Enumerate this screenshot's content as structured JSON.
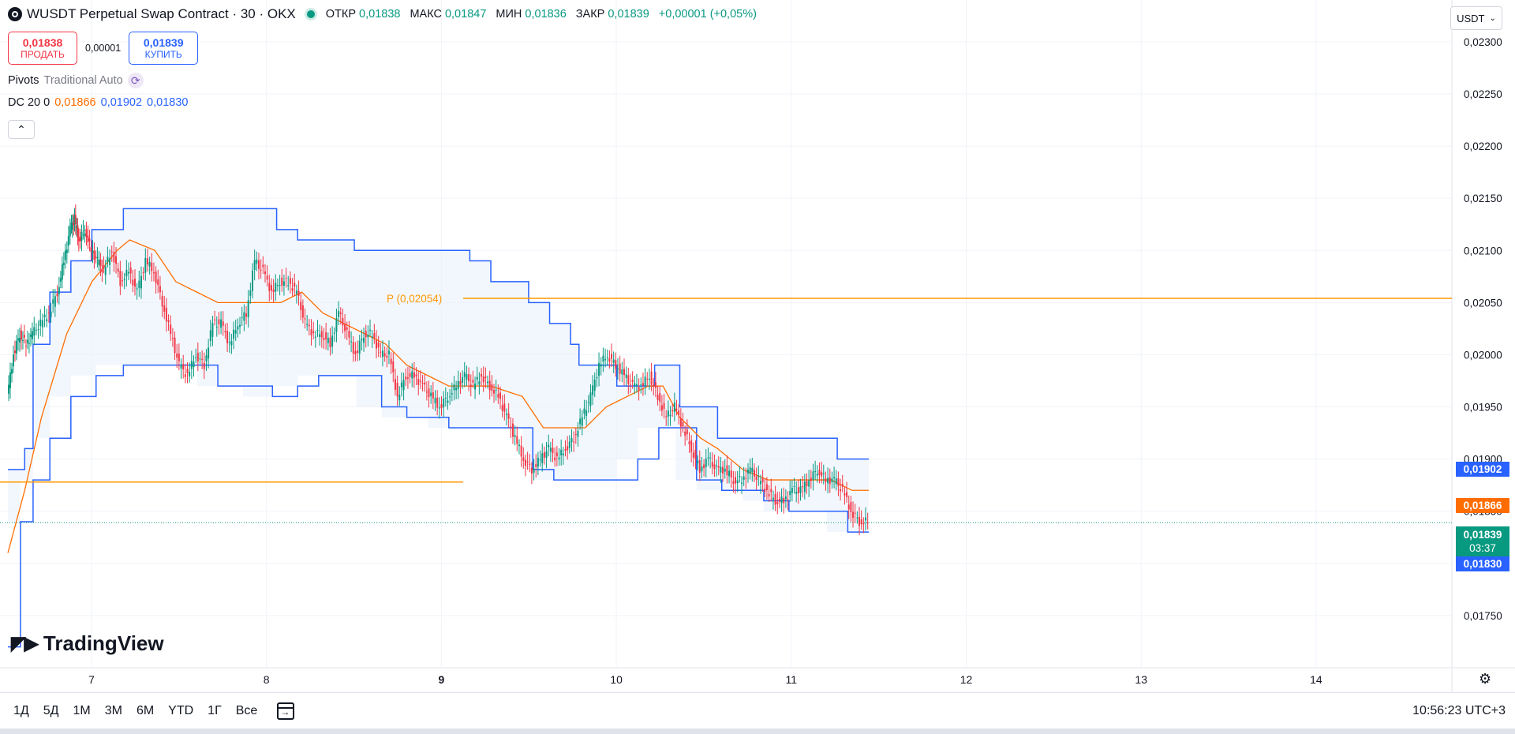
{
  "header": {
    "symbol_title": "WUSDT Perpetual Swap Contract · 30 · OKX",
    "ohlc": [
      {
        "label": "ОТКР",
        "value": "0,01838"
      },
      {
        "label": "МАКС",
        "value": "0,01847"
      },
      {
        "label": "МИН",
        "value": "0,01836"
      },
      {
        "label": "ЗАКР",
        "value": "0,01839"
      }
    ],
    "change": "+0,00001 (+0,05%)"
  },
  "trade": {
    "sell_price": "0,01838",
    "sell_label": "ПРОДАТЬ",
    "spread": "0,00001",
    "buy_price": "0,01839",
    "buy_label": "КУПИТЬ"
  },
  "indicators": {
    "pivots_name": "Pivots",
    "pivots_params": "Traditional Auto",
    "dc_name": "DC 20 0",
    "dc_basis": "0,01866",
    "dc_upper": "0,01902",
    "dc_lower": "0,01830"
  },
  "currency_select": "USDT",
  "price_tags": {
    "upper": "0,01902",
    "basis": "0,01866",
    "last": "0,01839",
    "countdown": "03:37",
    "lower": "0,01830"
  },
  "watermark": "TradingView",
  "timeframes": [
    "1Д",
    "5Д",
    "1М",
    "3М",
    "6М",
    "YTD",
    "1Г",
    "Все"
  ],
  "clock": "10:56:23 UTC+3",
  "colors": {
    "up": "#089981",
    "down": "#f23645",
    "dc_band": "#2962ff",
    "dc_basis": "#ff6d00",
    "pivot": "#ff9800",
    "fill": "#eaf2fb"
  },
  "chart_data": {
    "type": "candlestick",
    "yaxis": {
      "min": 0.017,
      "max": 0.0234,
      "ticks": [
        "0,01750",
        "0,01800",
        "0,01850",
        "0,01900",
        "0,01950",
        "0,02000",
        "0,02050",
        "0,02100",
        "0,02150",
        "0,02200",
        "0,02250",
        "0,02300"
      ]
    },
    "xaxis": {
      "labels": [
        "7",
        "8",
        "9",
        "10",
        "11",
        "12",
        "13",
        "14"
      ],
      "bold": [
        "9"
      ]
    },
    "pivot": {
      "label": "P (0,02054)",
      "value": 0.02054
    },
    "pivot_prev": {
      "value": 0.01878
    },
    "last_price": 0.01839,
    "donchian_upper": [
      [
        0,
        0.0189
      ],
      [
        8,
        0.0191
      ],
      [
        12,
        0.0201
      ],
      [
        20,
        0.0206
      ],
      [
        30,
        0.0209
      ],
      [
        40,
        0.0212
      ],
      [
        55,
        0.0214
      ],
      [
        65,
        0.0214
      ],
      [
        80,
        0.0214
      ],
      [
        90,
        0.0214
      ],
      [
        100,
        0.0214
      ],
      [
        110,
        0.0214
      ],
      [
        118,
        0.0214
      ],
      [
        128,
        0.0212
      ],
      [
        138,
        0.0211
      ],
      [
        150,
        0.0211
      ],
      [
        165,
        0.021
      ],
      [
        175,
        0.021
      ],
      [
        190,
        0.021
      ],
      [
        200,
        0.021
      ],
      [
        210,
        0.021
      ],
      [
        220,
        0.0209
      ],
      [
        230,
        0.0207
      ],
      [
        240,
        0.0207
      ],
      [
        248,
        0.0205
      ],
      [
        258,
        0.0203
      ],
      [
        268,
        0.0201
      ],
      [
        272,
        0.0199
      ],
      [
        280,
        0.0199
      ],
      [
        290,
        0.0197
      ],
      [
        300,
        0.0197
      ],
      [
        308,
        0.0199
      ],
      [
        312,
        0.0199
      ],
      [
        320,
        0.0195
      ],
      [
        330,
        0.0195
      ],
      [
        338,
        0.0192
      ],
      [
        348,
        0.0192
      ],
      [
        352,
        0.0192
      ],
      [
        356,
        0.0192
      ],
      [
        368,
        0.0192
      ],
      [
        378,
        0.0192
      ],
      [
        385,
        0.0192
      ],
      [
        395,
        0.019
      ],
      [
        402,
        0.019
      ],
      [
        410,
        0.019
      ]
    ],
    "donchian_lower": [
      [
        0,
        0.0172
      ],
      [
        6,
        0.0184
      ],
      [
        12,
        0.0188
      ],
      [
        20,
        0.0192
      ],
      [
        30,
        0.0196
      ],
      [
        42,
        0.0198
      ],
      [
        55,
        0.0199
      ],
      [
        65,
        0.0199
      ],
      [
        80,
        0.0199
      ],
      [
        90,
        0.0199
      ],
      [
        100,
        0.0197
      ],
      [
        112,
        0.0197
      ],
      [
        126,
        0.0196
      ],
      [
        138,
        0.0197
      ],
      [
        148,
        0.0198
      ],
      [
        158,
        0.0198
      ],
      [
        166,
        0.0198
      ],
      [
        178,
        0.0195
      ],
      [
        190,
        0.0194
      ],
      [
        200,
        0.0194
      ],
      [
        210,
        0.0193
      ],
      [
        222,
        0.0193
      ],
      [
        234,
        0.0193
      ],
      [
        245,
        0.0193
      ],
      [
        250,
        0.0189
      ],
      [
        260,
        0.0188
      ],
      [
        270,
        0.0188
      ],
      [
        278,
        0.0188
      ],
      [
        290,
        0.0188
      ],
      [
        300,
        0.019
      ],
      [
        310,
        0.0193
      ],
      [
        318,
        0.0193
      ],
      [
        328,
        0.0188
      ],
      [
        340,
        0.0187
      ],
      [
        350,
        0.0187
      ],
      [
        360,
        0.0186
      ],
      [
        372,
        0.0185
      ],
      [
        380,
        0.0185
      ],
      [
        390,
        0.0185
      ],
      [
        400,
        0.0183
      ],
      [
        410,
        0.0183
      ]
    ],
    "donchian_basis": [
      [
        0,
        0.0181
      ],
      [
        8,
        0.0187
      ],
      [
        16,
        0.0194
      ],
      [
        28,
        0.0202
      ],
      [
        40,
        0.0207
      ],
      [
        52,
        0.021
      ],
      [
        58,
        0.0211
      ],
      [
        70,
        0.021
      ],
      [
        80,
        0.0207
      ],
      [
        90,
        0.0206
      ],
      [
        100,
        0.0205
      ],
      [
        110,
        0.0205
      ],
      [
        120,
        0.0205
      ],
      [
        130,
        0.0205
      ],
      [
        140,
        0.0206
      ],
      [
        150,
        0.0204
      ],
      [
        160,
        0.0203
      ],
      [
        170,
        0.0202
      ],
      [
        180,
        0.0201
      ],
      [
        190,
        0.0199
      ],
      [
        200,
        0.0198
      ],
      [
        210,
        0.0197
      ],
      [
        220,
        0.0197
      ],
      [
        230,
        0.0197
      ],
      [
        245,
        0.0196
      ],
      [
        255,
        0.0193
      ],
      [
        265,
        0.0193
      ],
      [
        275,
        0.0193
      ],
      [
        285,
        0.0195
      ],
      [
        295,
        0.0196
      ],
      [
        305,
        0.0197
      ],
      [
        312,
        0.0197
      ],
      [
        320,
        0.0194
      ],
      [
        330,
        0.0192
      ],
      [
        338,
        0.0191
      ],
      [
        350,
        0.0189
      ],
      [
        362,
        0.0188
      ],
      [
        372,
        0.0188
      ],
      [
        382,
        0.0188
      ],
      [
        392,
        0.0188
      ],
      [
        402,
        0.0187
      ],
      [
        410,
        0.0187
      ]
    ],
    "close": [
      [
        0,
        0.0196
      ],
      [
        3,
        0.02
      ],
      [
        6,
        0.0202
      ],
      [
        9,
        0.0201
      ],
      [
        12,
        0.0202
      ],
      [
        16,
        0.0203
      ],
      [
        20,
        0.0204
      ],
      [
        24,
        0.0206
      ],
      [
        27,
        0.0209
      ],
      [
        30,
        0.0212
      ],
      [
        32,
        0.0213
      ],
      [
        34,
        0.0211
      ],
      [
        37,
        0.0212
      ],
      [
        40,
        0.021
      ],
      [
        43,
        0.0209
      ],
      [
        46,
        0.0208
      ],
      [
        50,
        0.021
      ],
      [
        54,
        0.0207
      ],
      [
        58,
        0.0208
      ],
      [
        62,
        0.0206
      ],
      [
        66,
        0.0209
      ],
      [
        70,
        0.0208
      ],
      [
        74,
        0.0205
      ],
      [
        78,
        0.0202
      ],
      [
        82,
        0.0199
      ],
      [
        86,
        0.0198
      ],
      [
        90,
        0.02
      ],
      [
        94,
        0.0199
      ],
      [
        98,
        0.0203
      ],
      [
        102,
        0.0203
      ],
      [
        106,
        0.0201
      ],
      [
        110,
        0.0203
      ],
      [
        114,
        0.0204
      ],
      [
        118,
        0.0209
      ],
      [
        122,
        0.0208
      ],
      [
        126,
        0.0206
      ],
      [
        130,
        0.0207
      ],
      [
        134,
        0.0207
      ],
      [
        138,
        0.0206
      ],
      [
        142,
        0.0203
      ],
      [
        146,
        0.0202
      ],
      [
        150,
        0.0202
      ],
      [
        154,
        0.0201
      ],
      [
        158,
        0.0204
      ],
      [
        162,
        0.0202
      ],
      [
        166,
        0.02
      ],
      [
        170,
        0.0202
      ],
      [
        174,
        0.0202
      ],
      [
        178,
        0.02
      ],
      [
        182,
        0.02
      ],
      [
        186,
        0.0196
      ],
      [
        190,
        0.0198
      ],
      [
        194,
        0.0198
      ],
      [
        198,
        0.0197
      ],
      [
        202,
        0.0196
      ],
      [
        206,
        0.0195
      ],
      [
        210,
        0.0196
      ],
      [
        214,
        0.0197
      ],
      [
        218,
        0.0198
      ],
      [
        222,
        0.0197
      ],
      [
        226,
        0.0198
      ],
      [
        230,
        0.0197
      ],
      [
        234,
        0.0196
      ],
      [
        238,
        0.0194
      ],
      [
        242,
        0.0192
      ],
      [
        246,
        0.019
      ],
      [
        250,
        0.0189
      ],
      [
        254,
        0.019
      ],
      [
        258,
        0.0191
      ],
      [
        262,
        0.019
      ],
      [
        266,
        0.0191
      ],
      [
        270,
        0.0192
      ],
      [
        274,
        0.0194
      ],
      [
        278,
        0.0196
      ],
      [
        282,
        0.0199
      ],
      [
        286,
        0.02
      ],
      [
        290,
        0.0199
      ],
      [
        294,
        0.0198
      ],
      [
        298,
        0.0197
      ],
      [
        302,
        0.0197
      ],
      [
        306,
        0.0198
      ],
      [
        310,
        0.0196
      ],
      [
        314,
        0.0194
      ],
      [
        318,
        0.0195
      ],
      [
        322,
        0.0193
      ],
      [
        326,
        0.0191
      ],
      [
        330,
        0.0189
      ],
      [
        334,
        0.019
      ],
      [
        338,
        0.0189
      ],
      [
        342,
        0.0189
      ],
      [
        346,
        0.0188
      ],
      [
        350,
        0.0188
      ],
      [
        354,
        0.0189
      ],
      [
        358,
        0.0188
      ],
      [
        362,
        0.0187
      ],
      [
        366,
        0.0186
      ],
      [
        370,
        0.0186
      ],
      [
        374,
        0.0187
      ],
      [
        378,
        0.0187
      ],
      [
        382,
        0.0188
      ],
      [
        386,
        0.0189
      ],
      [
        390,
        0.0188
      ],
      [
        394,
        0.0188
      ],
      [
        398,
        0.0187
      ],
      [
        402,
        0.0185
      ],
      [
        406,
        0.0184
      ],
      [
        410,
        0.0184
      ]
    ]
  }
}
